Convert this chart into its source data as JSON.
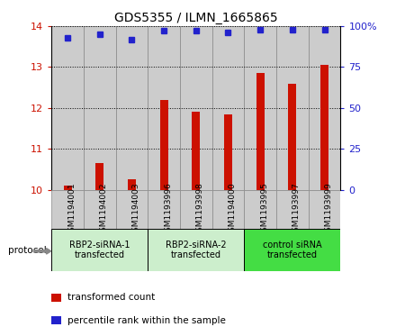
{
  "title": "GDS5355 / ILMN_1665865",
  "samples": [
    "GSM1194001",
    "GSM1194002",
    "GSM1194003",
    "GSM1193996",
    "GSM1193998",
    "GSM1194000",
    "GSM1193995",
    "GSM1193997",
    "GSM1193999"
  ],
  "bar_values": [
    10.1,
    10.65,
    10.25,
    12.2,
    11.9,
    11.85,
    12.85,
    12.6,
    13.05
  ],
  "percentile_values": [
    93,
    95,
    92,
    97,
    97,
    96,
    98,
    98,
    98
  ],
  "bar_color": "#cc1100",
  "dot_color": "#2222cc",
  "ylim_left": [
    10,
    14
  ],
  "ylim_right": [
    0,
    100
  ],
  "yticks_left": [
    10,
    11,
    12,
    13,
    14
  ],
  "yticks_right": [
    0,
    25,
    50,
    75,
    100
  ],
  "yticklabels_right": [
    "0",
    "25",
    "50",
    "75",
    "100%"
  ],
  "groups": [
    {
      "label": "RBP2-siRNA-1\ntransfected",
      "indices": [
        0,
        1,
        2
      ],
      "color": "#cceecc"
    },
    {
      "label": "RBP2-siRNA-2\ntransfected",
      "indices": [
        3,
        4,
        5
      ],
      "color": "#cceecc"
    },
    {
      "label": "control siRNA\ntransfected",
      "indices": [
        6,
        7,
        8
      ],
      "color": "#44dd44"
    }
  ],
  "protocol_label": "protocol",
  "legend_labels": [
    "transformed count",
    "percentile rank within the sample"
  ],
  "legend_colors": [
    "#cc1100",
    "#2222cc"
  ],
  "col_bg_color": "#cccccc",
  "col_border_color": "#888888",
  "background_color": "#ffffff",
  "title_fontsize": 10,
  "tick_fontsize": 7,
  "label_fontsize": 7.5
}
